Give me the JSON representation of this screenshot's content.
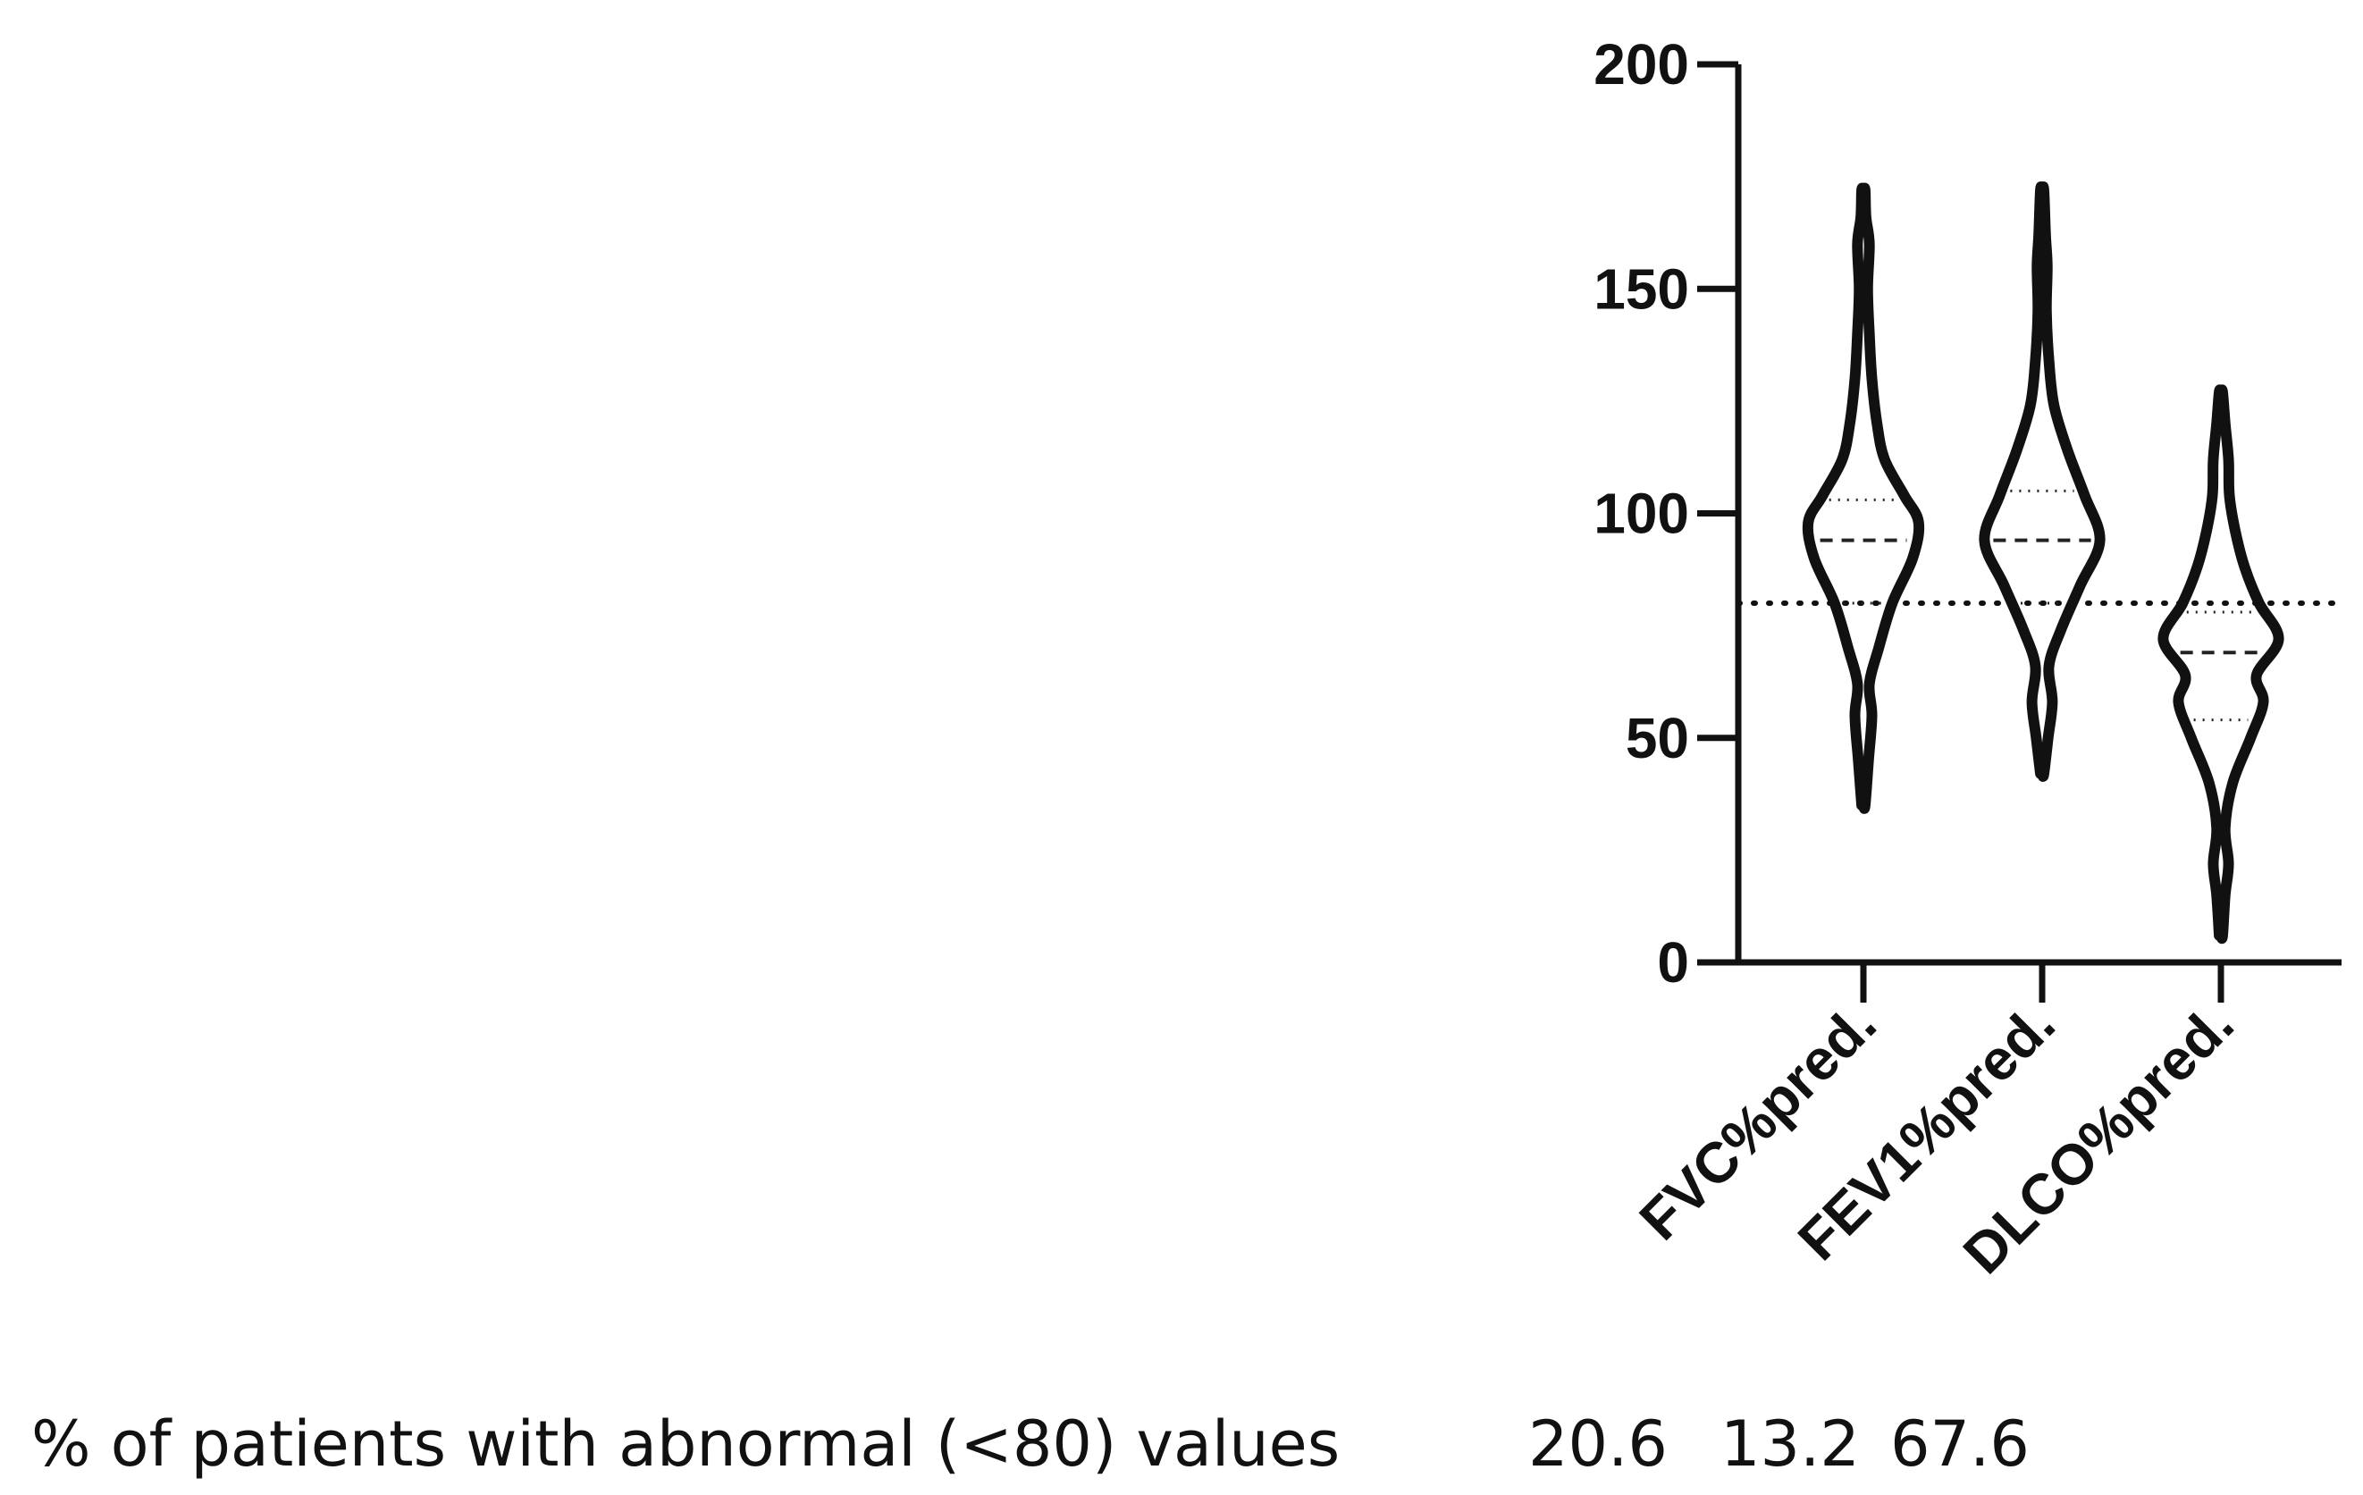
{
  "chart_data": {
    "type": "violin",
    "title": "",
    "xlabel": "",
    "ylabel": "",
    "ylim": [
      0,
      200
    ],
    "yticks": [
      0,
      50,
      100,
      150,
      200
    ],
    "reference_line": 80,
    "categories": [
      "FVC%pred.",
      "FEV1%pred.",
      "DLCO%pred."
    ],
    "series": [
      {
        "name": "FVC%pred.",
        "min": 35,
        "max": 172,
        "q1": 80,
        "median": 94,
        "q3": 103,
        "profile": [
          [
            35,
            0.02
          ],
          [
            45,
            0.06
          ],
          [
            55,
            0.1
          ],
          [
            62,
            0.07
          ],
          [
            70,
            0.18
          ],
          [
            80,
            0.34
          ],
          [
            90,
            0.58
          ],
          [
            98,
            0.65
          ],
          [
            104,
            0.48
          ],
          [
            112,
            0.25
          ],
          [
            120,
            0.16
          ],
          [
            130,
            0.1
          ],
          [
            140,
            0.07
          ],
          [
            150,
            0.05
          ],
          [
            160,
            0.07
          ],
          [
            166,
            0.03
          ],
          [
            172,
            0.02
          ]
        ]
      },
      {
        "name": "FEV1%pred.",
        "min": 42,
        "max": 172,
        "q1": 80,
        "median": 94,
        "q3": 105,
        "profile": [
          [
            42,
            0.02
          ],
          [
            50,
            0.07
          ],
          [
            58,
            0.12
          ],
          [
            66,
            0.08
          ],
          [
            74,
            0.22
          ],
          [
            84,
            0.45
          ],
          [
            94,
            0.68
          ],
          [
            104,
            0.5
          ],
          [
            114,
            0.3
          ],
          [
            124,
            0.14
          ],
          [
            134,
            0.08
          ],
          [
            145,
            0.05
          ],
          [
            155,
            0.06
          ],
          [
            162,
            0.04
          ],
          [
            172,
            0.02
          ]
        ]
      },
      {
        "name": "DLCO%pred.",
        "min": 6,
        "max": 127,
        "q1": 54,
        "median": 69,
        "q3": 78,
        "profile": [
          [
            6,
            0.02
          ],
          [
            15,
            0.05
          ],
          [
            22,
            0.09
          ],
          [
            30,
            0.05
          ],
          [
            40,
            0.14
          ],
          [
            50,
            0.35
          ],
          [
            58,
            0.5
          ],
          [
            64,
            0.42
          ],
          [
            72,
            0.68
          ],
          [
            80,
            0.45
          ],
          [
            88,
            0.28
          ],
          [
            96,
            0.17
          ],
          [
            104,
            0.1
          ],
          [
            112,
            0.09
          ],
          [
            120,
            0.05
          ],
          [
            127,
            0.02
          ]
        ]
      }
    ],
    "footnote": {
      "label": "% of patients with abnormal (<80) values",
      "values": [
        "20.6",
        "13.2",
        "67.6"
      ]
    }
  }
}
